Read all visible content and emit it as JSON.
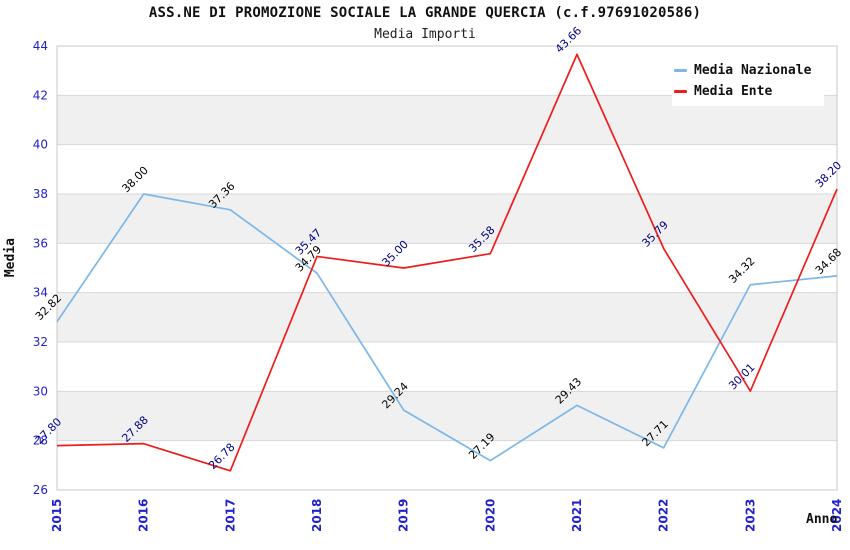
{
  "chart_data": {
    "type": "line",
    "title": "ASS.NE DI PROMOZIONE SOCIALE LA GRANDE QUERCIA (c.f.97691020586)",
    "subtitle": "Media Importi",
    "xlabel": "Anno",
    "ylabel": "Media",
    "categories": [
      "2015",
      "2016",
      "2017",
      "2018",
      "2019",
      "2020",
      "2021",
      "2022",
      "2023",
      "2024"
    ],
    "ylim": [
      26,
      44
    ],
    "ytick_step": 2,
    "grid": "horizontal-bands",
    "legend_position": "top-right",
    "series": [
      {
        "name": "Media Nazionale",
        "color": "#7db7e8",
        "label_color": "#000000",
        "values": [
          32.82,
          38.0,
          37.36,
          34.79,
          29.24,
          27.19,
          29.43,
          27.71,
          34.32,
          34.68
        ]
      },
      {
        "name": "Media Ente",
        "color": "#ee1c1c",
        "label_color": "#00008b",
        "values": [
          27.8,
          27.88,
          26.78,
          35.47,
          35.0,
          35.58,
          43.66,
          35.79,
          30.01,
          38.2
        ]
      }
    ],
    "colors": {
      "tick_label": "#2323cc",
      "band": "#f0f0f0",
      "gridline": "#d8d8d8",
      "plot_border": "#c8c8c8",
      "title": "#111111",
      "subtitle": "#222222"
    }
  }
}
